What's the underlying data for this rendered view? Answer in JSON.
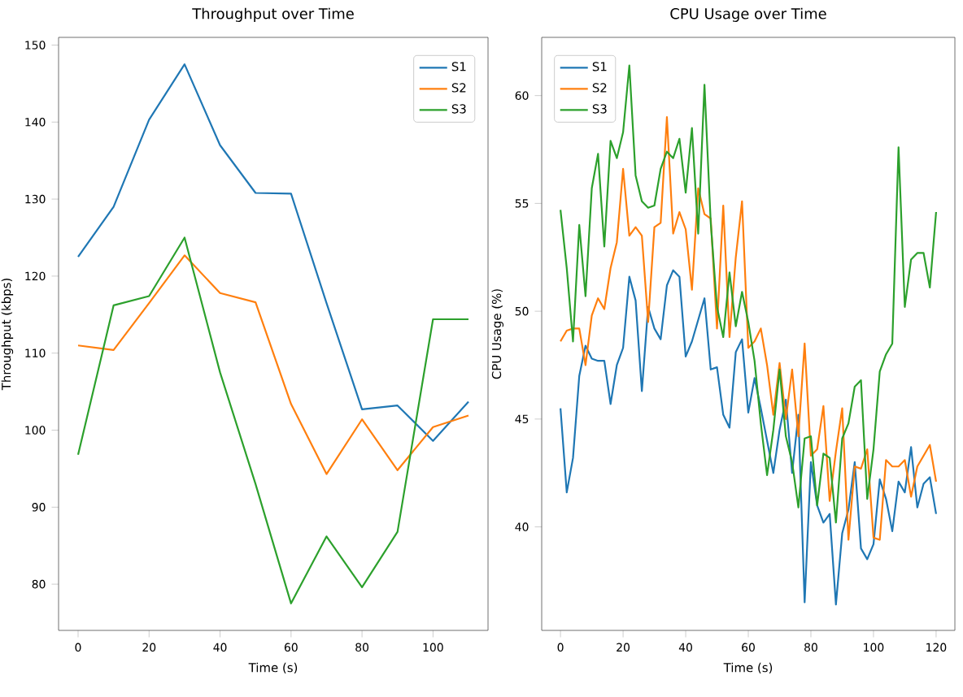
{
  "chart_data": [
    {
      "type": "line",
      "title": "Throughput over Time",
      "xlabel": "Time (s)",
      "ylabel": "Throughput (kbps)",
      "x": [
        0,
        10,
        20,
        30,
        40,
        50,
        60,
        70,
        80,
        90,
        100,
        110
      ],
      "series": [
        {
          "name": "S1",
          "color": "#1f77b4",
          "values": [
            122.5,
            129,
            140.3,
            147.5,
            137,
            130.8,
            130.7,
            116.5,
            102.7,
            103.2,
            98.6,
            103.7
          ]
        },
        {
          "name": "S2",
          "color": "#ff7f0e",
          "values": [
            111,
            110.4,
            116.5,
            122.7,
            117.8,
            116.6,
            103.4,
            94.3,
            101.4,
            94.8,
            100.4,
            101.9
          ]
        },
        {
          "name": "S3",
          "color": "#2ca02c",
          "values": [
            96.8,
            116.2,
            117.4,
            125,
            107.5,
            93,
            77.5,
            86.2,
            79.6,
            86.8,
            114.4,
            114.4
          ]
        }
      ],
      "xlim": [
        -5.5,
        115.5
      ],
      "ylim": [
        74,
        151
      ],
      "xticks": [
        0,
        20,
        40,
        60,
        80,
        100
      ],
      "yticks": [
        80,
        90,
        100,
        110,
        120,
        130,
        140,
        150
      ],
      "legend": "top right",
      "grid": false,
      "marker": "none",
      "line_style": "solid"
    },
    {
      "type": "line",
      "title": "CPU Usage over Time",
      "xlabel": "Time (s)",
      "ylabel": "CPU Usage (%)",
      "x": [
        0,
        2,
        4,
        6,
        8,
        10,
        12,
        14,
        16,
        18,
        20,
        22,
        24,
        26,
        28,
        30,
        32,
        34,
        36,
        38,
        40,
        42,
        44,
        46,
        48,
        50,
        52,
        54,
        56,
        58,
        60,
        62,
        64,
        66,
        68,
        70,
        72,
        74,
        76,
        78,
        80,
        82,
        84,
        86,
        88,
        90,
        92,
        94,
        96,
        98,
        100,
        102,
        104,
        106,
        108,
        110,
        112,
        114,
        116,
        118,
        120
      ],
      "series": [
        {
          "name": "S1",
          "color": "#1f77b4",
          "values": [
            45.5,
            41.6,
            43.2,
            47,
            48.4,
            47.8,
            47.7,
            47.7,
            45.7,
            47.5,
            48.3,
            51.6,
            50.5,
            46.3,
            50.2,
            49.2,
            48.7,
            51.2,
            51.9,
            51.6,
            47.9,
            48.6,
            49.6,
            50.6,
            47.3,
            47.4,
            45.2,
            44.6,
            48.1,
            48.7,
            45.3,
            46.9,
            45.5,
            44,
            42.5,
            44.5,
            45.9,
            42.5,
            45.2,
            36.5,
            43,
            41,
            40.2,
            40.6,
            36.4,
            39.7,
            40.8,
            43,
            39,
            38.5,
            39.2,
            42.2,
            41.3,
            39.8,
            42.1,
            41.6,
            43.7,
            40.9,
            42,
            42.3,
            40.6
          ]
        },
        {
          "name": "S2",
          "color": "#ff7f0e",
          "values": [
            48.6,
            49.1,
            49.2,
            49.2,
            47.5,
            49.8,
            50.6,
            50.1,
            52,
            53.2,
            56.6,
            53.5,
            53.9,
            53.5,
            49.5,
            53.9,
            54.1,
            59,
            53.6,
            54.6,
            53.8,
            51,
            55.7,
            54.5,
            54.3,
            49.2,
            54.9,
            48.8,
            52.5,
            55.1,
            48.3,
            48.6,
            49.2,
            47.5,
            45.2,
            47.6,
            45,
            47.3,
            44.2,
            48.5,
            43.3,
            43.6,
            45.6,
            41.2,
            43.5,
            45.5,
            39.4,
            42.8,
            42.7,
            43.6,
            39.5,
            39.4,
            43.1,
            42.8,
            42.8,
            43.1,
            41.4,
            42.8,
            43.3,
            43.8,
            42.1
          ]
        },
        {
          "name": "S3",
          "color": "#2ca02c",
          "values": [
            54.7,
            52,
            48.6,
            54,
            50.7,
            55.7,
            57.3,
            53,
            57.9,
            57.1,
            58.3,
            61.4,
            56.3,
            55.1,
            54.8,
            54.9,
            56.6,
            57.4,
            57.1,
            58,
            55.5,
            58.5,
            53.6,
            60.5,
            54.1,
            50.2,
            48.8,
            51.8,
            49.3,
            50.9,
            49.5,
            47.7,
            44.8,
            42.4,
            44.5,
            47.3,
            44.2,
            43,
            40.9,
            44.1,
            44.2,
            41,
            43.4,
            43.2,
            40.2,
            44.1,
            44.8,
            46.5,
            46.8,
            41.3,
            43.6,
            47.2,
            48,
            48.5,
            57.6,
            50.2,
            52.4,
            52.7,
            52.7,
            51.1,
            54.6
          ]
        }
      ],
      "xlim": [
        -6,
        126
      ],
      "ylim": [
        35.2,
        62.7
      ],
      "xticks": [
        0,
        20,
        40,
        60,
        80,
        100,
        120
      ],
      "yticks": [
        40,
        45,
        50,
        55,
        60
      ],
      "legend": "top left",
      "grid": false,
      "marker": "none",
      "line_style": "solid"
    }
  ]
}
